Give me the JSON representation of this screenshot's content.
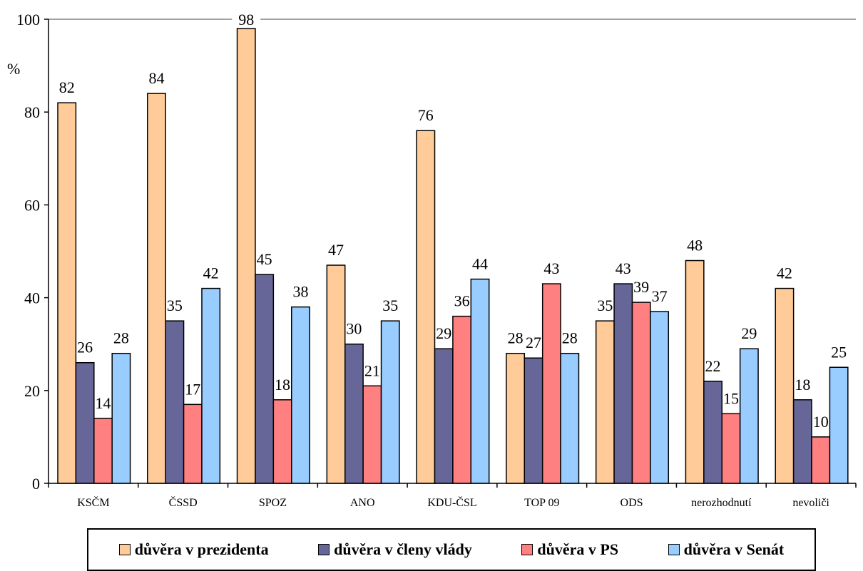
{
  "chart_data": {
    "type": "bar",
    "ylabel": "%",
    "ylim": [
      0,
      100
    ],
    "yticks": [
      "0",
      "20",
      "40",
      "60",
      "80",
      "100"
    ],
    "categories": [
      "KSČM",
      "ČSSD",
      "SPOZ",
      "ANO",
      "KDU-ČSL",
      "TOP 09",
      "ODS",
      "nerozhodnutí",
      "nevoliči"
    ],
    "series": [
      {
        "name": "důvěra v prezidenta",
        "color": "#ffcc99",
        "values": [
          82,
          84,
          98,
          47,
          76,
          28,
          35,
          48,
          42
        ]
      },
      {
        "name": "důvěra v členy vlády",
        "color": "#666699",
        "values": [
          26,
          35,
          45,
          30,
          29,
          27,
          43,
          22,
          18
        ]
      },
      {
        "name": "důvěra v PS",
        "color": "#ff8080",
        "values": [
          14,
          17,
          18,
          21,
          36,
          43,
          39,
          15,
          10
        ]
      },
      {
        "name": "důvěra v Senát",
        "color": "#99ccff",
        "values": [
          28,
          42,
          38,
          35,
          44,
          28,
          37,
          29,
          25
        ]
      }
    ],
    "gridlines": "top line only",
    "legend": "bottom"
  }
}
